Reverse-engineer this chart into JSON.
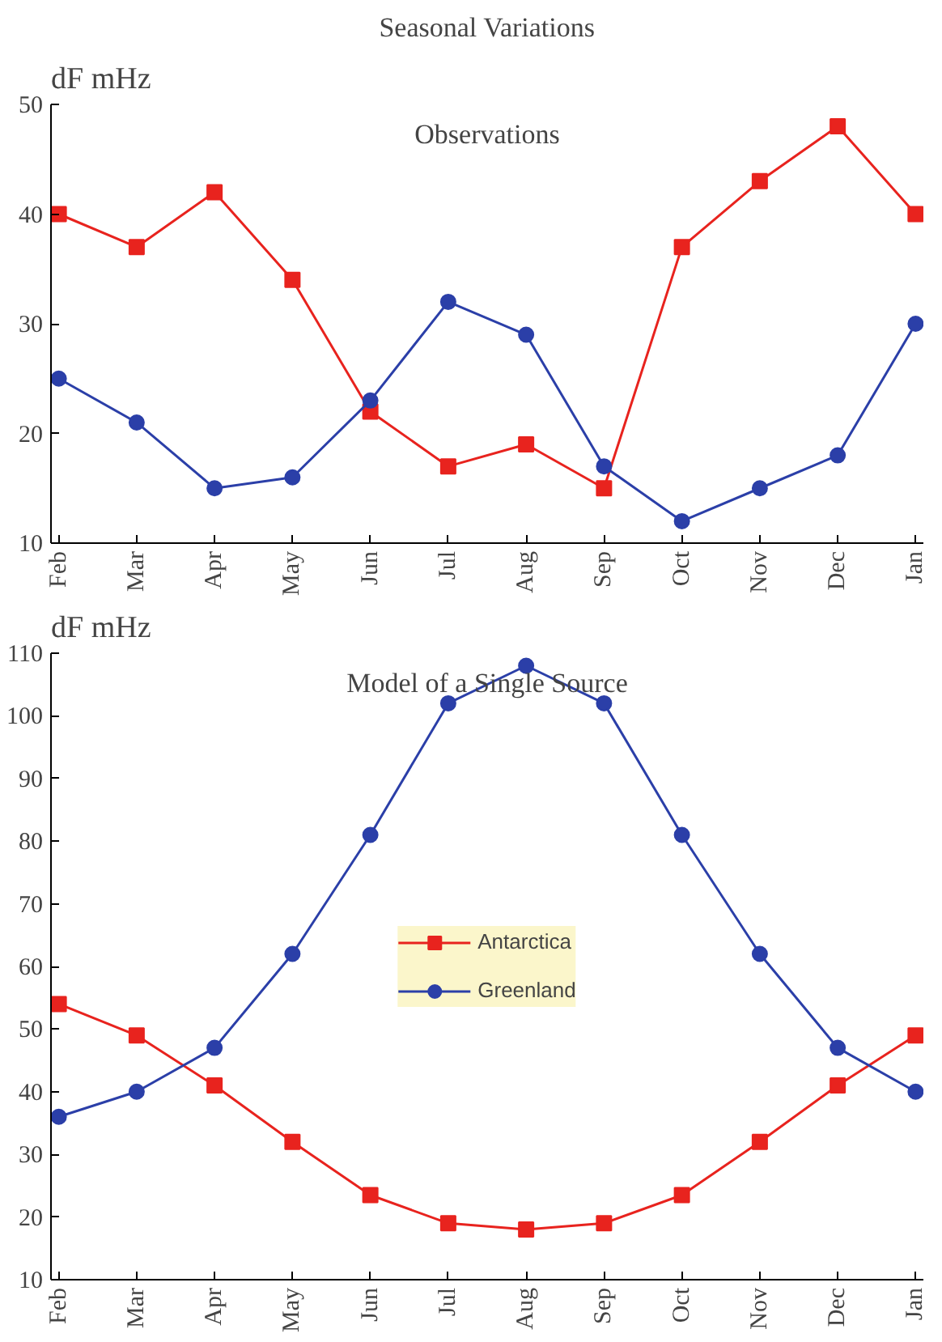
{
  "chart_data": [
    {
      "type": "line",
      "title": "Seasonal Variations",
      "subtitle": "Observations",
      "ylabel": "dF  mHz",
      "categories": [
        "Feb",
        "Mar",
        "Apr",
        "May",
        "Jun",
        "Jul",
        "Aug",
        "Sep",
        "Oct",
        "Nov",
        "Dec",
        "Jan"
      ],
      "series": [
        {
          "color": "#e8231e",
          "marker": "square",
          "values": [
            40,
            37,
            42,
            34,
            22,
            17,
            19,
            15,
            37,
            43,
            48,
            40
          ]
        },
        {
          "color": "#2b3fa8",
          "marker": "circle",
          "values": [
            25,
            21,
            15,
            16,
            23,
            32,
            29,
            17,
            12,
            15,
            18,
            30
          ]
        }
      ],
      "ylim": [
        10,
        50
      ],
      "yticks": [
        10,
        20,
        30,
        40,
        50
      ],
      "grid": false,
      "legend": false
    },
    {
      "type": "line",
      "subtitle": "Model of a Single Source",
      "ylabel": "dF  mHz",
      "categories": [
        "Feb",
        "Mar",
        "Apr",
        "May",
        "Jun",
        "Jul",
        "Aug",
        "Sep",
        "Oct",
        "Nov",
        "Dec",
        "Jan"
      ],
      "series": [
        {
          "name": "Antarctica",
          "color": "#e8231e",
          "marker": "square",
          "values": [
            54,
            49,
            41,
            32,
            23.5,
            19,
            18,
            19,
            23.5,
            32,
            41,
            49
          ]
        },
        {
          "name": "Greenland",
          "color": "#2b3fa8",
          "marker": "circle",
          "values": [
            36,
            40,
            47,
            62,
            81,
            102,
            108,
            102,
            81,
            62,
            47,
            40
          ]
        }
      ],
      "ylim": [
        10,
        110
      ],
      "yticks": [
        10,
        20,
        30,
        40,
        50,
        60,
        70,
        80,
        90,
        100,
        110
      ],
      "grid": false,
      "legend": "center"
    }
  ]
}
